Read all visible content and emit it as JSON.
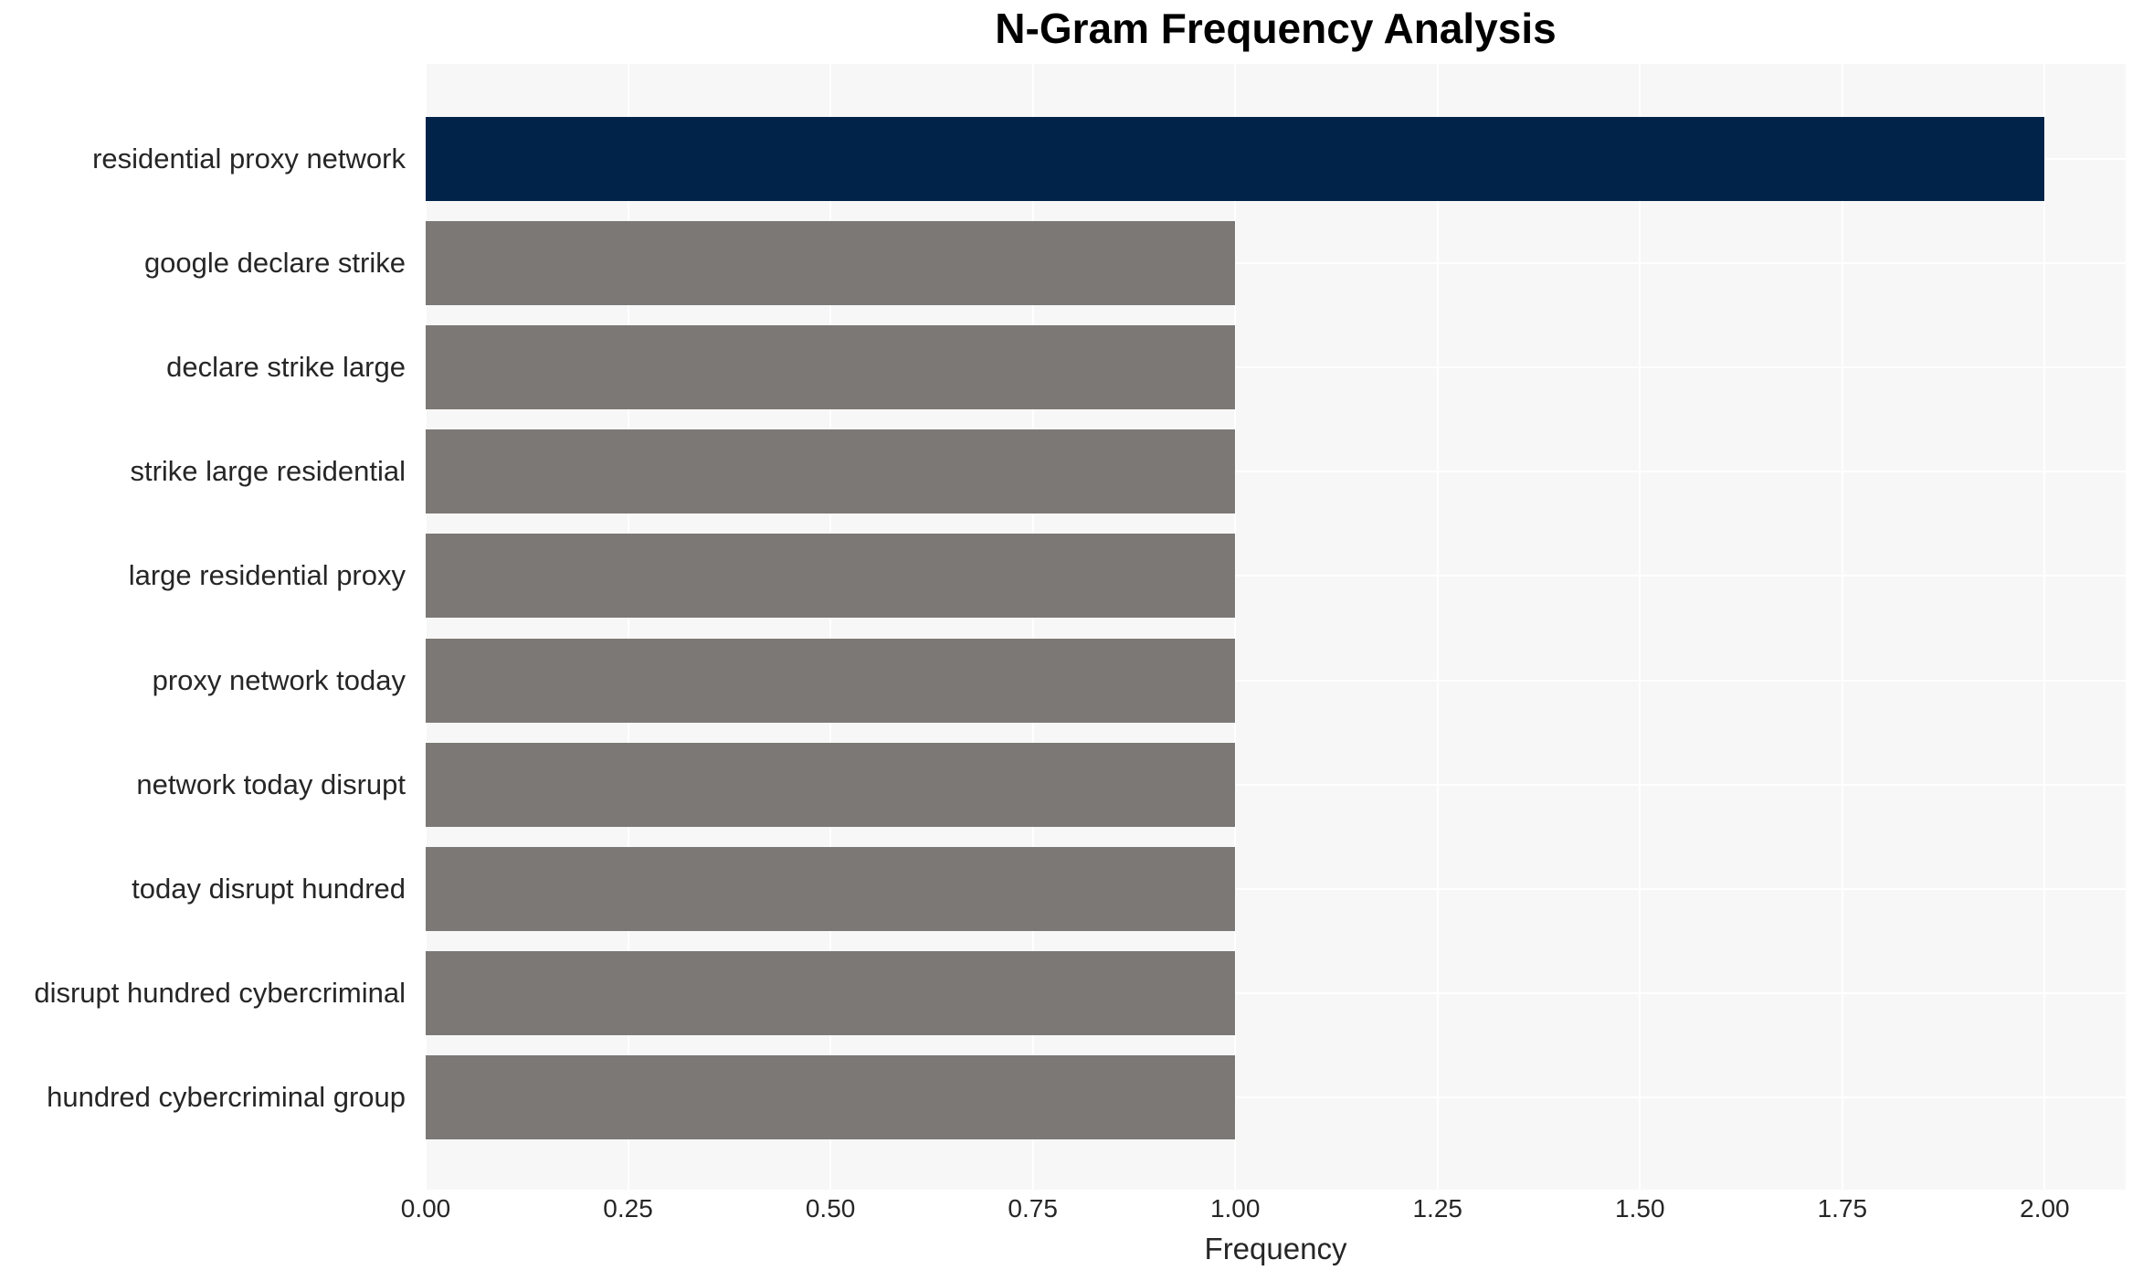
{
  "title": "N-Gram Frequency Analysis",
  "chart_data": {
    "type": "bar",
    "orientation": "horizontal",
    "title": "N-Gram Frequency Analysis",
    "xlabel": "Frequency",
    "ylabel": "",
    "categories": [
      "residential proxy network",
      "google declare strike",
      "declare strike large",
      "strike large residential",
      "large residential proxy",
      "proxy network today",
      "network today disrupt",
      "today disrupt hundred",
      "disrupt hundred cybercriminal",
      "hundred cybercriminal group"
    ],
    "values": [
      2,
      1,
      1,
      1,
      1,
      1,
      1,
      1,
      1,
      1
    ],
    "xlim": [
      0,
      2.1
    ],
    "xticks": [
      0,
      0.25,
      0.5,
      0.75,
      1.0,
      1.25,
      1.5,
      1.75,
      2.0
    ],
    "xtick_labels": [
      "0.00",
      "0.25",
      "0.50",
      "0.75",
      "1.00",
      "1.25",
      "1.50",
      "1.75",
      "2.00"
    ],
    "grid": true,
    "legend": false,
    "colors": {
      "highlight_bar": "#01234a",
      "default_bar": "#7b7875",
      "plot_background": "#f7f7f7",
      "gridline": "#ffffff",
      "tick_text": "#262626",
      "title_text": "#000000"
    }
  }
}
